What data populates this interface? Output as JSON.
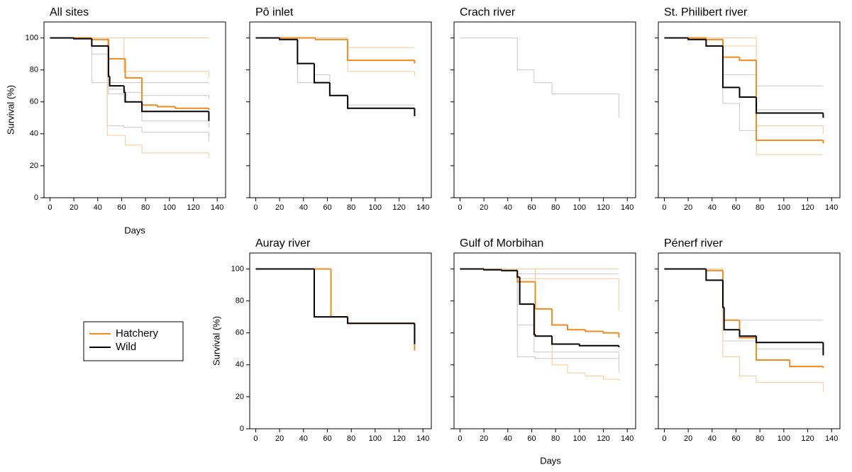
{
  "chart_data": [
    {
      "type": "step",
      "title": "All sites",
      "ylabel": "Survival (%)",
      "xlabel": "Days",
      "ytick_labels": true,
      "xlim": [
        -5,
        147
      ],
      "ylim": [
        0,
        110
      ],
      "xticks": [
        0,
        20,
        40,
        60,
        80,
        100,
        120,
        140
      ],
      "yticks": [
        0,
        20,
        40,
        60,
        80,
        100
      ],
      "series": [
        {
          "color": "#c8c8c8",
          "linewidth": 1,
          "x": [
            0,
            35,
            133
          ],
          "values": [
            100,
            72,
            72
          ]
        },
        {
          "color": "#c8c8c8",
          "linewidth": 1,
          "x": [
            0,
            35,
            49,
            62,
            77,
            133
          ],
          "values": [
            100,
            90,
            65,
            60,
            48,
            44
          ]
        },
        {
          "color": "#c8c8c8",
          "linewidth": 1,
          "x": [
            0,
            49,
            63,
            77,
            133
          ],
          "values": [
            100,
            68,
            66,
            64,
            62
          ]
        },
        {
          "color": "#c8c8c8",
          "linewidth": 1,
          "x": [
            0,
            48,
            62,
            77,
            133
          ],
          "values": [
            100,
            45,
            44,
            41,
            35
          ]
        },
        {
          "color": "#fbc795",
          "linewidth": 1,
          "x": [
            0,
            48,
            63,
            77,
            133
          ],
          "values": [
            100,
            39,
            33,
            28,
            25
          ]
        },
        {
          "color": "#fbc795",
          "linewidth": 1,
          "x": [
            0,
            62,
            133
          ],
          "values": [
            100,
            79,
            75
          ]
        },
        {
          "color": "#fbc795",
          "linewidth": 1,
          "x": [
            0,
            133
          ],
          "values": [
            100,
            100
          ]
        },
        {
          "color": "#f08a1c",
          "linewidth": 2,
          "x": [
            0,
            35,
            49,
            63,
            77,
            90,
            105,
            133
          ],
          "values": [
            100,
            99,
            87,
            75,
            58,
            57,
            56,
            55
          ]
        },
        {
          "color": "#000000",
          "linewidth": 2,
          "x": [
            0,
            20,
            35,
            49,
            50,
            62,
            63,
            77,
            133
          ],
          "values": [
            100,
            99.5,
            95,
            76,
            70,
            66,
            60,
            54,
            48
          ]
        }
      ]
    },
    {
      "type": "step",
      "title": "Pô inlet",
      "ytick_labels": false,
      "xlim": [
        -5,
        147
      ],
      "ylim": [
        0,
        110
      ],
      "xticks": [
        0,
        20,
        40,
        60,
        80,
        100,
        120,
        140
      ],
      "yticks": [
        0,
        20,
        40,
        60,
        80,
        100
      ],
      "series": [
        {
          "color": "#c8c8c8",
          "linewidth": 1,
          "x": [
            0,
            35,
            49,
            62,
            77,
            133
          ],
          "values": [
            100,
            72,
            77,
            64,
            58,
            58
          ]
        },
        {
          "color": "#fbc795",
          "linewidth": 1,
          "x": [
            0,
            77,
            133
          ],
          "values": [
            100,
            94,
            94
          ]
        },
        {
          "color": "#fbc795",
          "linewidth": 1,
          "x": [
            0,
            77,
            133
          ],
          "values": [
            100,
            79,
            76
          ]
        },
        {
          "color": "#f08a1c",
          "linewidth": 2,
          "x": [
            0,
            50,
            77,
            133
          ],
          "values": [
            100,
            99,
            86,
            84
          ]
        },
        {
          "color": "#000000",
          "linewidth": 2,
          "x": [
            0,
            20,
            35,
            49,
            62,
            77,
            133
          ],
          "values": [
            100,
            99,
            84,
            72,
            64,
            56,
            51
          ]
        }
      ]
    },
    {
      "type": "step",
      "title": "Crach river",
      "ytick_labels": false,
      "xlim": [
        -5,
        147
      ],
      "ylim": [
        0,
        110
      ],
      "xticks": [
        0,
        20,
        40,
        60,
        80,
        100,
        120,
        140
      ],
      "yticks": [
        0,
        20,
        40,
        60,
        80,
        100
      ],
      "series": [
        {
          "color": "#c8c8c8",
          "linewidth": 1,
          "x": [
            0,
            48,
            62,
            77,
            133
          ],
          "values": [
            100,
            80,
            72,
            65,
            50
          ]
        }
      ]
    },
    {
      "type": "step",
      "title": "St. Philibert river",
      "ytick_labels": false,
      "xlim": [
        -5,
        147
      ],
      "ylim": [
        0,
        110
      ],
      "xticks": [
        0,
        20,
        40,
        60,
        80,
        100,
        120,
        140
      ],
      "yticks": [
        0,
        20,
        40,
        60,
        80,
        100
      ],
      "series": [
        {
          "color": "#c8c8c8",
          "linewidth": 1,
          "x": [
            0,
            49,
            63,
            77,
            133
          ],
          "values": [
            100,
            77,
            77,
            70,
            70
          ]
        },
        {
          "color": "#c8c8c8",
          "linewidth": 1,
          "x": [
            0,
            49,
            63,
            77,
            133
          ],
          "values": [
            100,
            59,
            42,
            55,
            55
          ]
        },
        {
          "color": "#fbc795",
          "linewidth": 1,
          "x": [
            0,
            49,
            77,
            133
          ],
          "values": [
            100,
            95,
            45,
            40
          ]
        },
        {
          "color": "#fbc795",
          "linewidth": 1,
          "x": [
            0,
            77,
            133
          ],
          "values": [
            100,
            27,
            27
          ]
        },
        {
          "color": "#f08a1c",
          "linewidth": 2,
          "x": [
            0,
            35,
            49,
            63,
            77,
            133
          ],
          "values": [
            100,
            99,
            88,
            86,
            36,
            34
          ]
        },
        {
          "color": "#000000",
          "linewidth": 2,
          "x": [
            0,
            20,
            35,
            49,
            63,
            77,
            133
          ],
          "values": [
            100,
            99,
            95,
            69,
            63,
            53,
            50
          ]
        }
      ]
    },
    {
      "type": "step",
      "title": "Auray river",
      "ylabel": "Survival (%)",
      "ytick_labels": true,
      "xlim": [
        -5,
        147
      ],
      "ylim": [
        0,
        110
      ],
      "xticks": [
        0,
        20,
        40,
        60,
        80,
        100,
        120,
        140
      ],
      "yticks": [
        0,
        20,
        40,
        60,
        80,
        100
      ],
      "series": [
        {
          "color": "#f08a1c",
          "linewidth": 2,
          "x": [
            0,
            63,
            77,
            133
          ],
          "values": [
            100,
            70,
            66,
            49
          ]
        },
        {
          "color": "#000000",
          "linewidth": 2,
          "x": [
            0,
            49,
            77,
            133
          ],
          "values": [
            100,
            70,
            66,
            53
          ]
        }
      ]
    },
    {
      "type": "step",
      "title": "Gulf of Morbihan",
      "ytick_labels": false,
      "xlim": [
        -5,
        147
      ],
      "ylim": [
        0,
        110
      ],
      "xticks": [
        0,
        20,
        40,
        60,
        80,
        100,
        120,
        140
      ],
      "yticks": [
        0,
        20,
        40,
        60,
        80,
        100
      ],
      "series": [
        {
          "color": "#c8c8c8",
          "linewidth": 1,
          "x": [
            0,
            48,
            63,
            133
          ],
          "values": [
            100,
            45,
            44,
            35
          ]
        },
        {
          "color": "#c8c8c8",
          "linewidth": 1,
          "x": [
            0,
            48,
            62,
            133
          ],
          "values": [
            100,
            65,
            48,
            44
          ]
        },
        {
          "color": "#c8c8c8",
          "linewidth": 1,
          "x": [
            0,
            48,
            133
          ],
          "values": [
            100,
            97,
            97
          ]
        },
        {
          "color": "#fbc795",
          "linewidth": 1,
          "x": [
            0,
            48,
            133
          ],
          "values": [
            100,
            94,
            74
          ]
        },
        {
          "color": "#fbc795",
          "linewidth": 1,
          "x": [
            0,
            63,
            77,
            90,
            105,
            120,
            133
          ],
          "values": [
            100,
            58,
            40,
            35,
            33,
            31,
            30
          ]
        },
        {
          "color": "#fbc795",
          "linewidth": 1,
          "x": [
            0,
            133
          ],
          "values": [
            100,
            100
          ]
        },
        {
          "color": "#f08a1c",
          "linewidth": 2,
          "x": [
            0,
            20,
            35,
            48,
            63,
            77,
            90,
            105,
            120,
            133
          ],
          "values": [
            100,
            99.5,
            99,
            92,
            75,
            65,
            62,
            61,
            60,
            57
          ]
        },
        {
          "color": "#000000",
          "linewidth": 2,
          "x": [
            0,
            20,
            35,
            48,
            50,
            62,
            63,
            77,
            100,
            133
          ],
          "values": [
            100,
            99.5,
            99,
            95,
            78,
            59,
            58,
            53,
            52,
            51
          ]
        }
      ]
    },
    {
      "type": "step",
      "title": "Pénerf river",
      "ytick_labels": false,
      "xlim": [
        -5,
        147
      ],
      "ylim": [
        0,
        110
      ],
      "xticks": [
        0,
        20,
        40,
        60,
        80,
        100,
        120,
        140
      ],
      "yticks": [
        0,
        20,
        40,
        60,
        80,
        100
      ],
      "series": [
        {
          "color": "#c8c8c8",
          "linewidth": 1,
          "x": [
            0,
            49,
            133
          ],
          "values": [
            100,
            68,
            68
          ]
        },
        {
          "color": "#c8c8c8",
          "linewidth": 1,
          "x": [
            0,
            49,
            77,
            133
          ],
          "values": [
            100,
            55,
            50,
            45
          ]
        },
        {
          "color": "#fbc795",
          "linewidth": 1,
          "x": [
            0,
            49,
            63,
            77,
            133
          ],
          "values": [
            100,
            45,
            33,
            29,
            23
          ]
        },
        {
          "color": "#f08a1c",
          "linewidth": 2,
          "x": [
            0,
            35,
            49,
            50,
            63,
            77,
            105,
            133
          ],
          "values": [
            100,
            99,
            76,
            68,
            57,
            43,
            39,
            38
          ]
        },
        {
          "color": "#000000",
          "linewidth": 2,
          "x": [
            0,
            35,
            49,
            50,
            63,
            77,
            133
          ],
          "values": [
            100,
            93,
            76,
            62,
            58,
            54,
            46
          ]
        }
      ]
    }
  ],
  "xlabel": "Days",
  "legend": [
    {
      "name": "Hatchery",
      "color": "#f08a1c"
    },
    {
      "name": "Wild",
      "color": "#000000"
    }
  ]
}
